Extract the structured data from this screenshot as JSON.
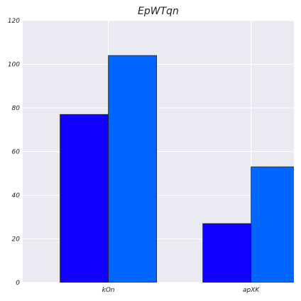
{
  "chart_data": {
    "type": "bar",
    "title": "EpWTqn",
    "xlabel": "",
    "ylabel": "",
    "categories": [
      "kOn",
      "apXK"
    ],
    "series": [
      {
        "values": [
          77,
          27
        ],
        "color": "#1100ff"
      },
      {
        "values": [
          104,
          53
        ],
        "color": "#0066ff"
      }
    ],
    "ylim": [
      0,
      120
    ],
    "yticks": [
      0,
      20,
      40,
      60,
      80,
      100,
      120
    ],
    "grid": true,
    "background_color": "#eaeaf2",
    "grid_color": "#ffffff"
  }
}
